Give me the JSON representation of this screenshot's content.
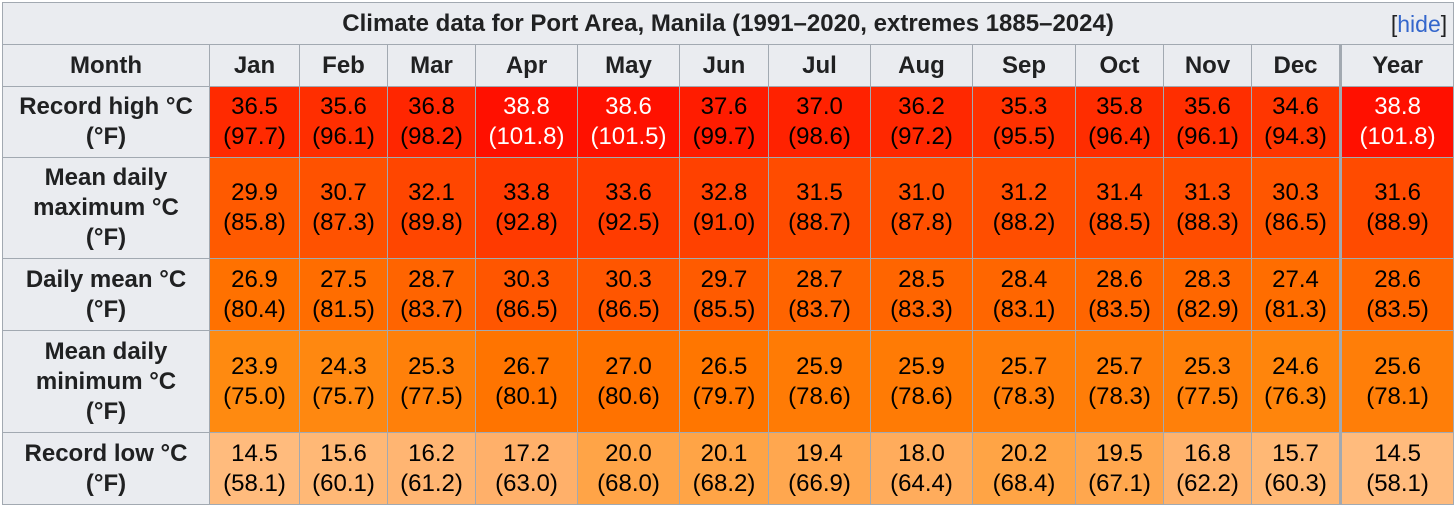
{
  "title": "Climate data for Port Area, Manila (1991–2020, extremes 1885–2024)",
  "hide_link": "hide",
  "header": {
    "month_label": "Month",
    "months": [
      "Jan",
      "Feb",
      "Mar",
      "Apr",
      "May",
      "Jun",
      "Jul",
      "Aug",
      "Sep",
      "Oct",
      "Nov",
      "Dec"
    ],
    "year_label": "Year"
  },
  "rows": [
    {
      "label_lines": [
        "Record high °C",
        "(°F)"
      ],
      "values": [
        "36.5",
        "35.6",
        "36.8",
        "38.8",
        "38.6",
        "37.6",
        "37.0",
        "36.2",
        "35.3",
        "35.8",
        "35.6",
        "34.6",
        "38.8"
      ],
      "values_f": [
        "(97.7)",
        "(96.1)",
        "(98.2)",
        "(101.8)",
        "(101.5)",
        "(99.7)",
        "(98.6)",
        "(97.2)",
        "(95.5)",
        "(96.4)",
        "(96.1)",
        "(94.3)",
        "(101.8)"
      ],
      "colors": [
        "#ff2a00",
        "#ff2e00",
        "#ff2600",
        "#ff1000",
        "#ff1100",
        "#ff1c00",
        "#ff2200",
        "#ff2800",
        "#ff3100",
        "#ff2d00",
        "#ff2e00",
        "#ff3600",
        "#ff1000"
      ],
      "light": [
        false,
        false,
        false,
        true,
        true,
        false,
        false,
        false,
        false,
        false,
        false,
        false,
        true
      ]
    },
    {
      "label_lines": [
        "Mean daily",
        "maximum °C",
        "(°F)"
      ],
      "values": [
        "29.9",
        "30.7",
        "32.1",
        "33.8",
        "33.6",
        "32.8",
        "31.5",
        "31.0",
        "31.2",
        "31.4",
        "31.3",
        "30.3",
        "31.6"
      ],
      "values_f": [
        "(85.8)",
        "(87.3)",
        "(89.8)",
        "(92.8)",
        "(92.5)",
        "(91.0)",
        "(88.7)",
        "(87.8)",
        "(88.2)",
        "(88.5)",
        "(88.3)",
        "(86.5)",
        "(88.9)"
      ],
      "colors": [
        "#ff5a00",
        "#ff5200",
        "#ff4600",
        "#ff3a00",
        "#ff3c00",
        "#ff4100",
        "#ff4c00",
        "#ff5000",
        "#ff4e00",
        "#ff4c00",
        "#ff4d00",
        "#ff5600",
        "#ff4b00"
      ],
      "light": [
        false,
        false,
        false,
        false,
        false,
        false,
        false,
        false,
        false,
        false,
        false,
        false,
        false
      ]
    },
    {
      "label_lines": [
        "Daily mean °C",
        "(°F)"
      ],
      "values": [
        "26.9",
        "27.5",
        "28.7",
        "30.3",
        "30.3",
        "29.7",
        "28.7",
        "28.5",
        "28.4",
        "28.6",
        "28.3",
        "27.4",
        "28.6"
      ],
      "values_f": [
        "(80.4)",
        "(81.5)",
        "(83.7)",
        "(86.5)",
        "(86.5)",
        "(85.5)",
        "(83.7)",
        "(83.3)",
        "(83.1)",
        "(83.5)",
        "(82.9)",
        "(81.3)",
        "(83.5)"
      ],
      "colors": [
        "#ff7100",
        "#ff6d00",
        "#ff6400",
        "#ff5600",
        "#ff5600",
        "#ff5b00",
        "#ff6400",
        "#ff6500",
        "#ff6600",
        "#ff6500",
        "#ff6700",
        "#ff6d00",
        "#ff6500"
      ],
      "light": [
        false,
        false,
        false,
        false,
        false,
        false,
        false,
        false,
        false,
        false,
        false,
        false,
        false
      ]
    },
    {
      "label_lines": [
        "Mean daily",
        "minimum °C",
        "(°F)"
      ],
      "values": [
        "23.9",
        "24.3",
        "25.3",
        "26.7",
        "27.0",
        "26.5",
        "25.9",
        "25.9",
        "25.7",
        "25.7",
        "25.3",
        "24.6",
        "25.6"
      ],
      "values_f": [
        "(75.0)",
        "(75.7)",
        "(77.5)",
        "(80.1)",
        "(80.6)",
        "(79.7)",
        "(78.6)",
        "(78.6)",
        "(78.3)",
        "(78.3)",
        "(77.5)",
        "(76.3)",
        "(78.1)"
      ],
      "colors": [
        "#ff8a10",
        "#ff8810",
        "#ff800a",
        "#ff7400",
        "#ff7200",
        "#ff7600",
        "#ff7b05",
        "#ff7b05",
        "#ff7d08",
        "#ff7d08",
        "#ff800a",
        "#ff850c",
        "#ff7e08"
      ],
      "light": [
        false,
        false,
        false,
        false,
        false,
        false,
        false,
        false,
        false,
        false,
        false,
        false,
        false
      ]
    },
    {
      "label_lines": [
        "Record low °C",
        "(°F)"
      ],
      "values": [
        "14.5",
        "15.6",
        "16.2",
        "17.2",
        "20.0",
        "20.1",
        "19.4",
        "18.0",
        "20.2",
        "19.5",
        "16.8",
        "15.7",
        "14.5"
      ],
      "values_f": [
        "(58.1)",
        "(60.1)",
        "(61.2)",
        "(63.0)",
        "(68.0)",
        "(68.2)",
        "(66.9)",
        "(64.4)",
        "(68.4)",
        "(67.1)",
        "(62.2)",
        "(60.3)",
        "(58.1)"
      ],
      "colors": [
        "#ffbb7d",
        "#ffb876",
        "#ffb572",
        "#ffb06a",
        "#ffa447",
        "#ffa446",
        "#ffa74f",
        "#ffac5c",
        "#ffa445",
        "#ffa74e",
        "#ffb36d",
        "#ffb875",
        "#ffbb7d"
      ],
      "light": [
        false,
        false,
        false,
        false,
        false,
        false,
        false,
        false,
        false,
        false,
        false,
        false,
        false
      ]
    }
  ]
}
